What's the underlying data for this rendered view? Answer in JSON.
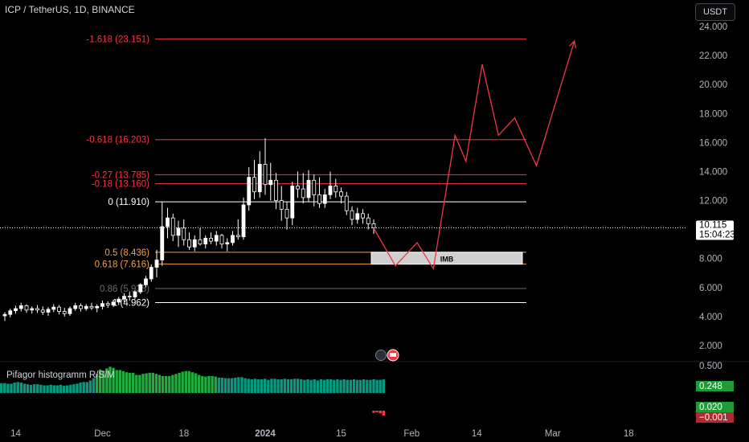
{
  "header": {
    "symbol_title": "ICP / TetherUS, 1D, BINANCE",
    "currency_button": "USDT"
  },
  "colors": {
    "background": "#000000",
    "candle": "#ffffff",
    "fib_red": "#f23645",
    "fib_orange": "#f7a04a",
    "fib_gray": "#6b6b6b",
    "fib_white": "#ffffff",
    "projection": "#f23645",
    "hist_green": "#089981",
    "hist_bright_green": "#22ab3e",
    "hist_red": "#f23645",
    "price_tag": "#ffffff"
  },
  "chart_data": [
    {
      "type": "candlestick",
      "title": "ICP / TetherUS, 1D, BINANCE",
      "ylim": [
        1.0,
        25.5
      ],
      "y_ticks": [
        "24.000",
        "22.000",
        "20.000",
        "18.000",
        "16.000",
        "14.000",
        "12.000",
        "10.000",
        "8.000",
        "6.000",
        "4.000",
        "2.000"
      ],
      "y_tick_values": [
        24,
        22,
        20,
        18,
        16,
        14,
        12,
        10,
        8,
        6,
        4,
        2
      ],
      "x_ticks": [
        "14",
        "Dec",
        "18",
        "2024",
        "15",
        "Feb",
        "14",
        "Mar",
        "18"
      ],
      "x_tick_bars": [
        2,
        18,
        33,
        48,
        62,
        75,
        87,
        101,
        115
      ],
      "last_price": "10.115",
      "countdown": "15:04:23",
      "ohlc": [
        [
          4.05,
          4.3,
          3.7,
          4.15
        ],
        [
          4.15,
          4.55,
          3.95,
          4.4
        ],
        [
          4.4,
          4.75,
          4.2,
          4.55
        ],
        [
          4.55,
          4.95,
          4.35,
          4.75
        ],
        [
          4.75,
          4.85,
          4.25,
          4.45
        ],
        [
          4.45,
          4.7,
          4.2,
          4.55
        ],
        [
          4.55,
          4.8,
          4.25,
          4.45
        ],
        [
          4.45,
          4.7,
          4.1,
          4.3
        ],
        [
          4.3,
          4.65,
          4.05,
          4.5
        ],
        [
          4.5,
          4.85,
          4.3,
          4.65
        ],
        [
          4.65,
          4.8,
          4.15,
          4.35
        ],
        [
          4.35,
          4.6,
          4.0,
          4.2
        ],
        [
          4.2,
          4.7,
          4.05,
          4.55
        ],
        [
          4.55,
          4.95,
          4.4,
          4.75
        ],
        [
          4.75,
          4.9,
          4.35,
          4.55
        ],
        [
          4.55,
          4.85,
          4.4,
          4.7
        ],
        [
          4.7,
          4.95,
          4.45,
          4.6
        ],
        [
          4.6,
          4.85,
          4.3,
          4.7
        ],
        [
          4.7,
          5.1,
          4.5,
          4.9
        ],
        [
          4.9,
          5.05,
          4.6,
          4.8
        ],
        [
          4.8,
          5.15,
          4.65,
          5.0
        ],
        [
          5.0,
          5.35,
          4.8,
          5.2
        ],
        [
          5.2,
          5.6,
          5.0,
          5.4
        ],
        [
          5.4,
          5.7,
          5.1,
          5.35
        ],
        [
          5.35,
          5.8,
          5.2,
          5.7
        ],
        [
          5.7,
          6.3,
          5.55,
          6.2
        ],
        [
          6.2,
          6.8,
          6.0,
          6.6
        ],
        [
          6.6,
          7.6,
          6.4,
          7.4
        ],
        [
          7.4,
          8.6,
          6.7,
          7.9
        ],
        [
          7.9,
          11.9,
          7.5,
          10.2
        ],
        [
          10.2,
          11.5,
          9.4,
          10.8
        ],
        [
          10.8,
          11.1,
          9.2,
          9.6
        ],
        [
          9.6,
          10.6,
          8.8,
          10.1
        ],
        [
          10.1,
          10.7,
          8.9,
          9.3
        ],
        [
          9.3,
          9.8,
          8.6,
          8.8
        ],
        [
          8.8,
          9.6,
          8.5,
          9.3
        ],
        [
          9.3,
          10.1,
          8.9,
          9.0
        ],
        [
          9.0,
          9.6,
          8.7,
          9.4
        ],
        [
          9.4,
          9.8,
          9.0,
          9.2
        ],
        [
          9.2,
          9.9,
          8.9,
          9.6
        ],
        [
          9.6,
          9.7,
          8.7,
          9.0
        ],
        [
          9.0,
          9.4,
          8.5,
          9.1
        ],
        [
          9.1,
          9.9,
          8.9,
          9.6
        ],
        [
          9.6,
          10.7,
          9.3,
          9.5
        ],
        [
          9.5,
          12.2,
          9.3,
          11.7
        ],
        [
          11.7,
          14.3,
          11.3,
          13.6
        ],
        [
          13.6,
          14.8,
          12.1,
          12.6
        ],
        [
          12.6,
          15.4,
          12.2,
          14.5
        ],
        [
          14.5,
          16.3,
          12.4,
          13.1
        ],
        [
          13.1,
          14.6,
          12.0,
          13.4
        ],
        [
          13.4,
          13.9,
          11.4,
          12.0
        ],
        [
          12.0,
          13.0,
          10.6,
          11.4
        ],
        [
          11.4,
          11.9,
          10.0,
          10.8
        ],
        [
          10.8,
          13.3,
          10.3,
          13.0
        ],
        [
          13.0,
          14.0,
          12.2,
          12.8
        ],
        [
          12.8,
          13.9,
          11.8,
          12.2
        ],
        [
          12.2,
          14.1,
          11.9,
          13.4
        ],
        [
          13.4,
          13.8,
          11.6,
          12.4
        ],
        [
          12.4,
          13.6,
          11.5,
          11.8
        ],
        [
          11.8,
          12.8,
          11.5,
          12.4
        ],
        [
          12.4,
          14.0,
          12.1,
          13.0
        ],
        [
          13.0,
          13.5,
          12.2,
          12.6
        ],
        [
          12.6,
          12.9,
          11.8,
          12.3
        ],
        [
          12.3,
          12.6,
          11.0,
          11.3
        ],
        [
          11.3,
          11.6,
          10.3,
          10.7
        ],
        [
          10.7,
          11.5,
          10.4,
          11.1
        ],
        [
          11.1,
          11.4,
          10.4,
          10.8
        ],
        [
          10.8,
          11.1,
          10.0,
          10.4
        ],
        [
          10.4,
          10.7,
          9.7,
          10.115
        ]
      ]
    },
    {
      "type": "fibonacci",
      "levels": [
        {
          "label": "-1.618 (23.151)",
          "price": 23.151,
          "style": "red"
        },
        {
          "label": "-0.618 (16.203)",
          "price": 16.203,
          "style": "red"
        },
        {
          "label": "-0.27 (13.785)",
          "price": 13.785,
          "style": "red"
        },
        {
          "label": "-0.18 (13.160)",
          "price": 13.16,
          "style": "red"
        },
        {
          "label": "0 (11.910)",
          "price": 11.91,
          "style": "white"
        },
        {
          "label": "0.5 (8.436)",
          "price": 8.436,
          "style": "orange"
        },
        {
          "label": "0.618 (7.616)",
          "price": 7.616,
          "style": "orange"
        },
        {
          "label": "0.86 (5.935)",
          "price": 5.935,
          "style": "gray"
        },
        {
          "label": "1 (4.962)",
          "price": 4.962,
          "style": "white"
        }
      ],
      "imb_zone": {
        "label": "IMB",
        "top": 8.436,
        "bottom": 7.616
      },
      "projection_path": [
        [
          68,
          10.1
        ],
        [
          72,
          7.5
        ],
        [
          76,
          9.1
        ],
        [
          79,
          7.3
        ],
        [
          83,
          16.5
        ],
        [
          85,
          14.7
        ],
        [
          88,
          21.4
        ],
        [
          91,
          16.5
        ],
        [
          94,
          17.7
        ],
        [
          98,
          14.4
        ],
        [
          105,
          23.0
        ]
      ]
    },
    {
      "type": "histogram",
      "title": "Pifagor histogramm R/S/M",
      "ylim": [
        -0.3,
        0.5
      ],
      "y_ticks": [
        "0.500"
      ],
      "y_tick_values": [
        0.5
      ],
      "badges": [
        {
          "label": "0.248",
          "value": 0.248,
          "color": "green"
        },
        {
          "label": "0.020",
          "value": 0.02,
          "color": "green"
        },
        {
          "label": "−0.001",
          "value": -0.001,
          "color": "red"
        }
      ],
      "values": [
        0.18,
        0.18,
        0.17,
        0.17,
        0.19,
        0.2,
        0.19,
        0.17,
        0.16,
        0.15,
        0.16,
        0.16,
        0.15,
        0.14,
        0.14,
        0.15,
        0.14,
        0.14,
        0.15,
        0.13,
        0.14,
        0.15,
        0.16,
        0.17,
        0.19,
        0.2,
        0.2,
        0.23,
        0.27,
        0.35,
        0.43,
        0.41,
        0.45,
        0.48,
        0.46,
        0.42,
        0.42,
        0.4,
        0.38,
        0.37,
        0.37,
        0.33,
        0.33,
        0.35,
        0.36,
        0.37,
        0.37,
        0.35,
        0.33,
        0.31,
        0.31,
        0.31,
        0.33,
        0.35,
        0.37,
        0.39,
        0.4,
        0.4,
        0.38,
        0.36,
        0.33,
        0.31,
        0.3,
        0.31,
        0.31,
        0.3,
        0.28,
        0.28,
        0.27,
        0.27,
        0.27,
        0.28,
        0.29,
        0.29,
        0.27,
        0.26,
        0.25,
        0.26,
        0.25,
        0.25,
        0.26,
        0.24,
        0.26,
        0.26,
        0.25,
        0.25,
        0.26,
        0.25,
        0.25,
        0.26,
        0.26,
        0.25,
        0.24,
        0.25,
        0.24,
        0.25,
        0.23,
        0.25,
        0.24,
        0.25,
        0.25,
        0.24,
        0.25,
        0.24,
        0.25,
        0.24,
        0.24,
        0.25,
        0.24,
        0.24,
        0.25,
        0.24,
        0.24,
        0.25,
        0.24,
        0.24,
        0.248
      ],
      "red_tail": [
        -0.04,
        -0.03,
        -0.05,
        -0.09
      ]
    }
  ]
}
